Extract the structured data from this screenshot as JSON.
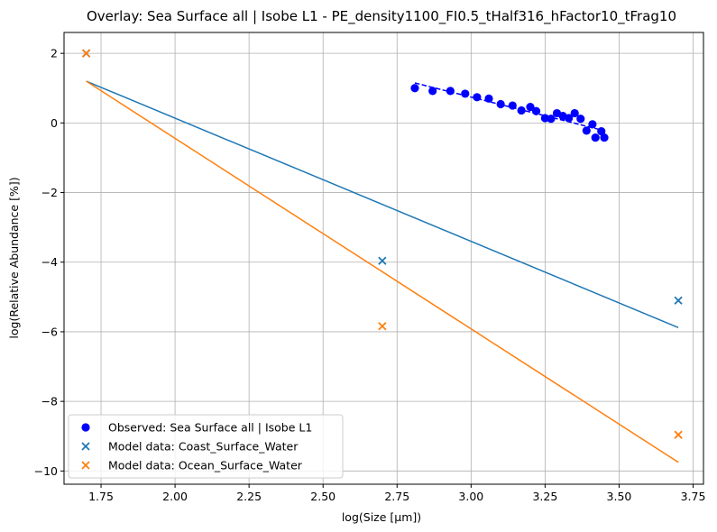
{
  "chart_data": {
    "type": "scatter",
    "title": "Overlay: Sea Surface all | Isobe L1 - PE_density1100_FI0.5_tHalf316_hFactor10_tFrag10",
    "xlabel": "log(Size [μm])",
    "ylabel": "log(Relative Abundance [%])",
    "xlim": [
      1.625,
      3.785
    ],
    "ylim": [
      -10.38,
      2.6
    ],
    "xticks": [
      1.75,
      2.0,
      2.25,
      2.5,
      2.75,
      3.0,
      3.25,
      3.5,
      3.75
    ],
    "xtick_labels": [
      "1.75",
      "2.00",
      "2.25",
      "2.50",
      "2.75",
      "3.00",
      "3.25",
      "3.50",
      "3.75"
    ],
    "yticks": [
      -10,
      -8,
      -6,
      -4,
      -2,
      0,
      2
    ],
    "ytick_labels": [
      "−10",
      "−8",
      "−6",
      "−4",
      "−2",
      "0",
      "2"
    ],
    "grid": true,
    "legend_position": "lower-left",
    "series": [
      {
        "name": "Observed: Sea Surface all | Isobe L1",
        "kind": "scatter",
        "marker": "circle",
        "color": "#0000ff",
        "x": [
          2.81,
          2.87,
          2.93,
          2.98,
          3.02,
          3.06,
          3.1,
          3.14,
          3.17,
          3.2,
          3.22,
          3.25,
          3.27,
          3.29,
          3.31,
          3.33,
          3.35,
          3.37,
          3.39,
          3.41,
          3.42,
          3.44,
          3.45
        ],
        "y": [
          1.0,
          0.92,
          0.92,
          0.84,
          0.74,
          0.7,
          0.54,
          0.5,
          0.36,
          0.46,
          0.34,
          0.14,
          0.12,
          0.28,
          0.2,
          0.14,
          0.28,
          0.12,
          -0.22,
          -0.04,
          -0.42,
          -0.24,
          -0.42
        ]
      },
      {
        "name": "",
        "kind": "line",
        "style": "dashed",
        "color": "#0000ff",
        "x": [
          2.81,
          3.43
        ],
        "y": [
          1.15,
          -0.18
        ]
      },
      {
        "name": "Model data: Coast_Surface_Water",
        "kind": "scatter",
        "marker": "x",
        "color": "#1f77b4",
        "x": [
          1.7,
          2.7,
          3.7
        ],
        "y": [
          2.0,
          -3.96,
          -5.1
        ]
      },
      {
        "name": "",
        "kind": "line",
        "style": "solid",
        "color": "#1f77b4",
        "x": [
          1.7,
          3.7
        ],
        "y": [
          1.2,
          -5.88
        ]
      },
      {
        "name": "Model data: Ocean_Surface_Water",
        "kind": "scatter",
        "marker": "x",
        "color": "#ff7f0e",
        "x": [
          1.7,
          2.7,
          3.7
        ],
        "y": [
          2.0,
          -5.84,
          -8.96
        ]
      },
      {
        "name": "",
        "kind": "line",
        "style": "solid",
        "color": "#ff7f0e",
        "x": [
          1.7,
          3.7
        ],
        "y": [
          1.2,
          -9.75
        ]
      }
    ],
    "legend": [
      {
        "label": "Observed: Sea Surface all | Isobe L1",
        "marker": "circle",
        "color": "#0000ff"
      },
      {
        "label": "Model data: Coast_Surface_Water",
        "marker": "x",
        "color": "#1f77b4"
      },
      {
        "label": "Model data: Ocean_Surface_Water",
        "marker": "x",
        "color": "#ff7f0e"
      }
    ]
  }
}
